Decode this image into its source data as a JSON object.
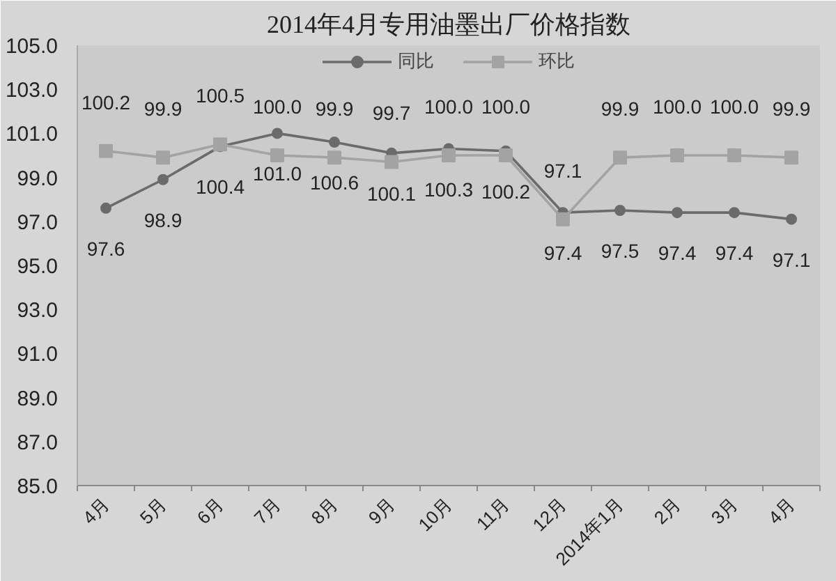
{
  "chart_data": {
    "type": "line",
    "title": "2014年4月专用油墨出厂价格指数",
    "categories": [
      "4月",
      "5月",
      "6月",
      "7月",
      "8月",
      "9月",
      "10月",
      "11月",
      "12月",
      "2014年1月",
      "2月",
      "3月",
      "4月"
    ],
    "series": [
      {
        "name": "同比",
        "color": "#6b6b6b",
        "marker": "circle",
        "values": [
          97.6,
          98.9,
          100.4,
          101.0,
          100.6,
          100.1,
          100.3,
          100.2,
          97.4,
          97.5,
          97.4,
          97.4,
          97.1
        ],
        "value_labels": [
          "97.6",
          "98.9",
          "100.4",
          "101.0",
          "100.6",
          "100.1",
          "100.3",
          "100.2",
          "97.4",
          "97.5",
          "97.4",
          "97.4",
          "97.1"
        ]
      },
      {
        "name": "环比",
        "color": "#a3a3a3",
        "marker": "square",
        "values": [
          100.2,
          99.9,
          100.5,
          100.0,
          99.9,
          99.7,
          100.0,
          100.0,
          97.1,
          99.9,
          100.0,
          100.0,
          99.9
        ],
        "value_labels": [
          "100.2",
          "99.9",
          "100.5",
          "100.0",
          "99.9",
          "99.7",
          "100.0",
          "100.0",
          "97.1",
          "99.9",
          "100.0",
          "100.0",
          "99.9"
        ]
      }
    ],
    "ylim": [
      85,
      105
    ],
    "yticks": [
      {
        "value": 85,
        "label": "85.0"
      },
      {
        "value": 87,
        "label": "87.0"
      },
      {
        "value": 89,
        "label": "89.0"
      },
      {
        "value": 91,
        "label": "91.0"
      },
      {
        "value": 93,
        "label": "93.0"
      },
      {
        "value": 95,
        "label": "95.0"
      },
      {
        "value": 97,
        "label": "97.0"
      },
      {
        "value": 99,
        "label": "99.0"
      },
      {
        "value": 101,
        "label": "101.0"
      },
      {
        "value": 103,
        "label": "103.0"
      },
      {
        "value": 105,
        "label": "105.0"
      }
    ],
    "legend": "top"
  }
}
